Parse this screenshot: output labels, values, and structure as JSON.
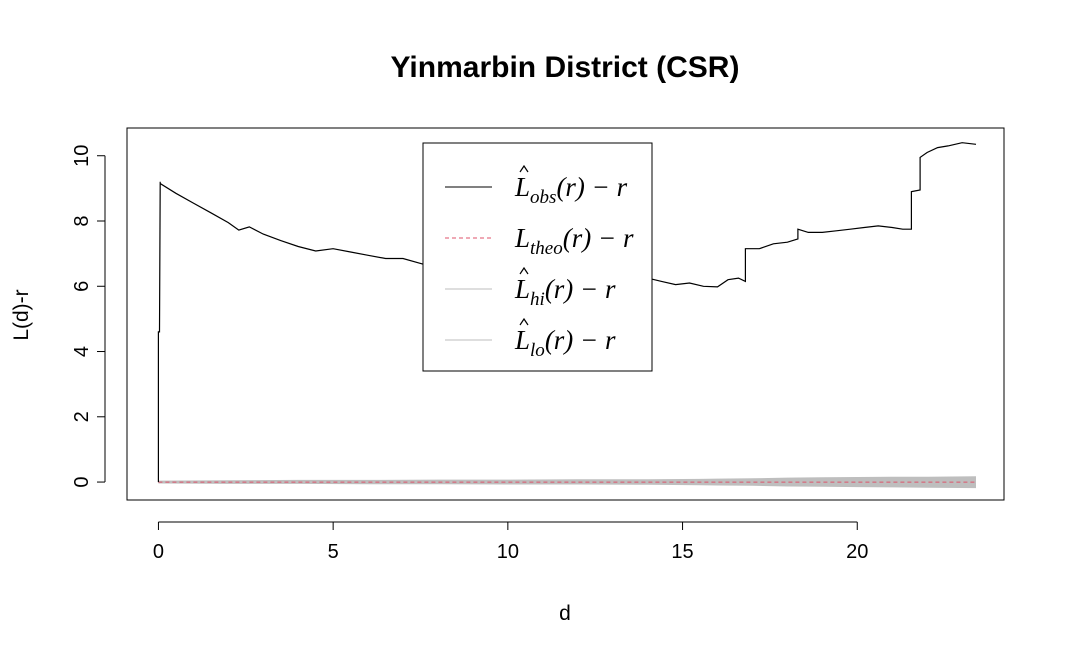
{
  "chart_data": {
    "type": "line",
    "title": "Yinmarbin District (CSR)",
    "xlabel": "d",
    "ylabel": "L(d)-r",
    "xlim": [
      -0.9,
      24.2
    ],
    "ylim": [
      -0.55,
      10.85
    ],
    "x_ticks": [
      0,
      5,
      10,
      15,
      20
    ],
    "y_ticks": [
      0,
      2,
      4,
      6,
      8,
      10
    ],
    "grid": false,
    "legend_position": "top-center",
    "legend": [
      {
        "hat": true,
        "main": "L",
        "sub": "obs",
        "tail": "(r) − r",
        "style": "solid",
        "color": "#000000"
      },
      {
        "hat": false,
        "main": "L",
        "sub": "theo",
        "tail": "(r) − r",
        "style": "dashed",
        "color": "#df536b"
      },
      {
        "hat": true,
        "main": "L",
        "sub": "hi",
        "tail": "(r) − r",
        "style": "solid",
        "color": "#bebebe"
      },
      {
        "hat": true,
        "main": "L",
        "sub": "lo",
        "tail": "(r) − r",
        "style": "solid",
        "color": "#bebebe"
      }
    ],
    "series": [
      {
        "key": "obs",
        "color": "#000000",
        "x": [
          0,
          0.0,
          0.03,
          0.05,
          0.05,
          0.5,
          1.0,
          1.5,
          2.0,
          2.3,
          2.6,
          3.0,
          3.5,
          4.0,
          4.5,
          5.0,
          5.5,
          6.0,
          6.5,
          7.0,
          7.5,
          8.0,
          8.5,
          9.0,
          9.4,
          9.6,
          9.9,
          10.3,
          10.7,
          11.0,
          11.4,
          11.8,
          12.2,
          12.5,
          12.8,
          13.2,
          13.6,
          14.0,
          14.4,
          14.8,
          15.2,
          15.6,
          16.0,
          16.3,
          16.6,
          16.8,
          16.8,
          17.2,
          17.6,
          18.0,
          18.3,
          18.3,
          18.6,
          19.0,
          19.4,
          19.8,
          20.2,
          20.6,
          21.0,
          21.3,
          21.5,
          21.55,
          21.55,
          21.8,
          21.8,
          22.0,
          22.3,
          22.6,
          23.0,
          23.4
        ],
        "y": [
          0,
          4.6,
          4.6,
          9.2,
          9.15,
          8.85,
          8.55,
          8.25,
          7.95,
          7.72,
          7.82,
          7.6,
          7.4,
          7.22,
          7.08,
          7.15,
          7.05,
          6.95,
          6.85,
          6.85,
          6.7,
          6.55,
          6.45,
          6.3,
          6.15,
          6.2,
          6.55,
          6.45,
          6.38,
          6.3,
          6.45,
          6.55,
          6.35,
          6.3,
          6.5,
          6.45,
          6.3,
          6.25,
          6.15,
          6.05,
          6.1,
          6.0,
          5.98,
          6.2,
          6.25,
          6.15,
          7.15,
          7.15,
          7.3,
          7.35,
          7.45,
          7.75,
          7.65,
          7.65,
          7.7,
          7.75,
          7.8,
          7.85,
          7.8,
          7.75,
          7.75,
          7.75,
          8.9,
          8.95,
          9.95,
          10.1,
          10.25,
          10.3,
          10.4,
          10.35
        ]
      },
      {
        "key": "theo",
        "color": "#df536b",
        "x": [
          0,
          23.4
        ],
        "y": [
          0,
          0
        ]
      },
      {
        "key": "hi",
        "color": "#bebebe",
        "x": [
          0,
          2,
          4,
          6,
          8,
          10,
          12,
          14,
          15.5,
          16,
          17,
          18,
          19,
          20,
          21,
          22,
          23.4
        ],
        "y": [
          0.03,
          0.04,
          0.05,
          0.05,
          0.06,
          0.06,
          0.07,
          0.07,
          0.08,
          0.09,
          0.1,
          0.12,
          0.13,
          0.14,
          0.15,
          0.15,
          0.16
        ]
      },
      {
        "key": "lo",
        "color": "#bebebe",
        "x": [
          0,
          2,
          4,
          6,
          8,
          10,
          12,
          14,
          15.5,
          16,
          17,
          18,
          19,
          20,
          21,
          22,
          23.4
        ],
        "y": [
          -0.03,
          -0.04,
          -0.04,
          -0.05,
          -0.05,
          -0.06,
          -0.06,
          -0.07,
          -0.08,
          -0.09,
          -0.1,
          -0.12,
          -0.13,
          -0.14,
          -0.15,
          -0.16,
          -0.17
        ]
      }
    ]
  }
}
